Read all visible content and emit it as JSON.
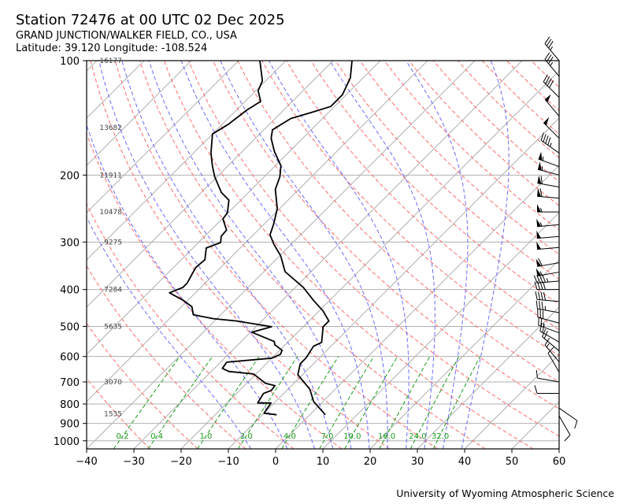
{
  "chart_data": {
    "type": "line",
    "subtype": "skew-t log-p",
    "title": "Station 72476 at 00 UTC 02 Dec 2025",
    "station_name": "GRAND JUNCTION/WALKER FIELD, CO., USA",
    "location": "Latitude: 39.120 Longitude: -108.524",
    "credit": "University of Wyoming Atmospheric Science",
    "xlabel": "",
    "ylabel": "",
    "xlim": [
      -40,
      60
    ],
    "ylim_hpa": [
      1050,
      100
    ],
    "x_ticks": [
      -40,
      -30,
      -20,
      -10,
      0,
      10,
      20,
      30,
      40,
      50,
      60
    ],
    "y_ticks": [
      100,
      200,
      300,
      400,
      500,
      600,
      700,
      800,
      900,
      1000
    ],
    "grid": true,
    "height_labels": [
      {
        "p": 100,
        "text": "16177"
      },
      {
        "p": 150,
        "text": "13682"
      },
      {
        "p": 200,
        "text": "11911"
      },
      {
        "p": 250,
        "text": "10478"
      },
      {
        "p": 300,
        "text": "9275"
      },
      {
        "p": 400,
        "text": "7284"
      },
      {
        "p": 500,
        "text": "5635"
      },
      {
        "p": 700,
        "text": "3070"
      },
      {
        "p": 850,
        "text": "1535"
      }
    ],
    "mixing_ratio_labels": [
      "0.2",
      "0.4",
      "1.0",
      "2.0",
      "4.0",
      "7.0",
      "10.0",
      "16.0",
      "24.0",
      "32.0"
    ],
    "mixing_ratios": [
      0.2,
      0.4,
      1.0,
      2.0,
      4.0,
      7.0,
      10.0,
      16.0,
      24.0,
      32.0
    ],
    "dry_adiabats_theta_c": [
      -30,
      -20,
      -10,
      0,
      10,
      20,
      30,
      40,
      50,
      60,
      70,
      80,
      90,
      100,
      110,
      120,
      130,
      140,
      150,
      160,
      170,
      180,
      190,
      200
    ],
    "moist_adiabats_t0_c": [
      -8,
      0,
      6,
      10,
      14,
      18,
      22,
      26,
      30,
      34,
      38
    ],
    "series": [
      {
        "name": "temperature",
        "color": "#000000",
        "p": [
          854,
          788,
          733,
          670,
          627,
          606,
          564,
          551,
          501,
          484,
          455,
          428,
          395,
          359,
          326,
          304,
          287,
          269,
          245,
          218,
          202,
          189,
          173,
          160,
          152,
          142,
          137,
          132,
          123,
          111,
          100
        ],
        "t": [
          3.3,
          -2.0,
          -5.3,
          -11.0,
          -12.8,
          -12.8,
          -13.7,
          -12.8,
          -15.8,
          -15.8,
          -19.2,
          -23.3,
          -28.3,
          -35.5,
          -39.8,
          -43.7,
          -46.5,
          -48.0,
          -50.5,
          -55.0,
          -56.7,
          -58.8,
          -63.3,
          -66.7,
          -68.2,
          -66.7,
          -63.7,
          -60.8,
          -60.8,
          -62.7,
          -66.0
        ]
      },
      {
        "name": "dewpoint",
        "color": "#000000",
        "p": [
          854,
          846,
          795,
          795,
          751,
          737,
          716,
          706,
          667,
          657,
          645,
          621,
          606,
          592,
          578,
          559,
          548,
          518,
          501,
          484,
          477,
          466,
          444,
          428,
          408,
          395,
          385,
          350,
          334,
          311,
          301,
          290,
          279,
          261,
          251,
          233,
          222,
          202,
          189,
          175,
          156,
          147,
          135,
          128,
          120,
          113,
          100
        ],
        "t": [
          -7,
          -10,
          -10.7,
          -13.5,
          -14.3,
          -13.3,
          -13.5,
          -16,
          -20.5,
          -26.3,
          -28.3,
          -28.7,
          -20,
          -19,
          -19.5,
          -22.2,
          -23,
          -29.7,
          -26.7,
          -35.3,
          -40.8,
          -45.8,
          -47.8,
          -50.8,
          -55.5,
          -53.8,
          -53.8,
          -55.3,
          -55,
          -57.2,
          -55.3,
          -56.5,
          -56.7,
          -59.8,
          -60.2,
          -62.5,
          -65.8,
          -70.5,
          -73.3,
          -76.3,
          -80,
          -78.7,
          -77.8,
          -76.7,
          -79.5,
          -80.7,
          -85.5
        ]
      }
    ],
    "wind_barbs": {
      "units": "knots",
      "p": [
        100,
        110,
        125,
        140,
        160,
        175,
        190,
        200,
        215,
        230,
        250,
        270,
        290,
        310,
        340,
        360,
        380,
        400,
        430,
        460,
        490,
        520,
        550,
        580,
        620,
        660,
        700,
        750,
        820,
        860
      ],
      "dir": [
        320,
        320,
        315,
        320,
        315,
        305,
        290,
        285,
        280,
        275,
        270,
        265,
        265,
        265,
        260,
        260,
        265,
        270,
        275,
        280,
        285,
        290,
        300,
        310,
        320,
        330,
        280,
        270,
        125,
        150
      ],
      "spd": [
        35,
        35,
        40,
        50,
        50,
        45,
        55,
        55,
        60,
        60,
        55,
        55,
        50,
        50,
        60,
        55,
        45,
        40,
        40,
        35,
        30,
        25,
        20,
        20,
        15,
        10,
        10,
        10,
        10,
        10
      ]
    },
    "colors": {
      "isotherm": "#b0b0b0",
      "dry_adiabat": "#ff6b6b",
      "moist_adiabat": "#6b6bff",
      "mixing_ratio": "#1a9c1a"
    }
  }
}
